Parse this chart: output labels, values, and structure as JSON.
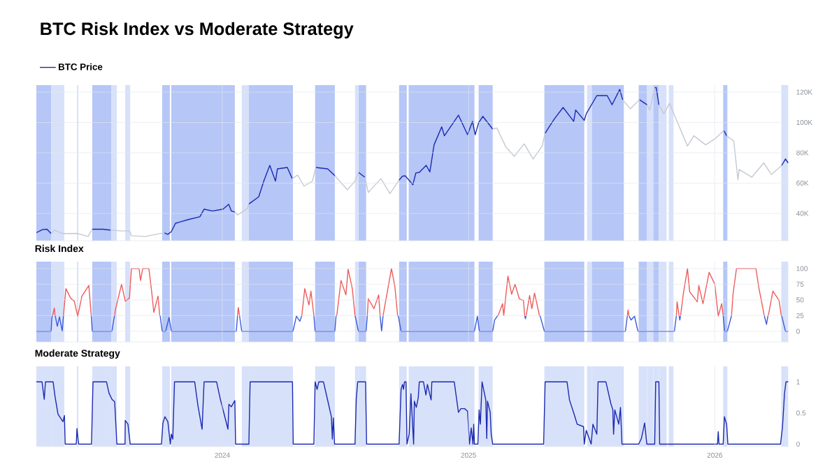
{
  "chart_data": [
    {
      "type": "line",
      "title": "BTC Risk Index vs Moderate Strategy",
      "legend": "top left",
      "grid": true,
      "tick_labels": "y",
      "xlim": [
        2023.245,
        2026.3
      ],
      "xticks": [
        2024,
        2025,
        2026
      ],
      "ylim": [
        22000,
        124600
      ],
      "yticks": [
        {
          "value": 40000,
          "label": "40K"
        },
        {
          "value": 60000,
          "label": "60K"
        },
        {
          "value": 80000,
          "label": "80K"
        },
        {
          "value": 100000,
          "label": "100K"
        },
        {
          "value": 120000,
          "label": "120K"
        }
      ],
      "series": [
        {
          "name": "BTC Price",
          "color": "#1b2ab0",
          "x": [
            2023.245,
            2023.271,
            2023.288,
            2023.305,
            null,
            2023.472,
            2023.515,
            2023.546,
            null,
            2023.765,
            2023.779,
            2023.793,
            2023.81,
            2023.861,
            2023.909,
            2023.926,
            2023.96,
            2024.003,
            2024.026,
            2024.037,
            2024.051,
            null,
            2024.108,
            2024.148,
            2024.17,
            2024.193,
            2024.216,
            2024.224,
            2024.264,
            2024.284,
            null,
            2024.38,
            2024.428,
            2024.457,
            null,
            2024.553,
            2024.579,
            null,
            2024.718,
            2024.732,
            2024.743,
            2024.774,
            2024.786,
            2024.8,
            2024.828,
            2024.843,
            2024.86,
            2024.891,
            2024.902,
            2024.959,
            2024.996,
            2025.016,
            2025.027,
            2025.041,
            2025.058,
            2025.078,
            2025.098,
            null,
            2025.311,
            2025.348,
            2025.384,
            2025.427,
            2025.435,
            2025.47,
            2025.478,
            2025.521,
            2025.563,
            2025.583,
            2025.614,
            2025.626,
            null,
            2025.694,
            2025.725,
            null,
            2025.756,
            2025.762,
            2025.773,
            null,
            2026.037,
            2026.048,
            null,
            2026.272,
            2026.287,
            2026.298
          ],
          "values": [
            27300,
            29400,
            29600,
            26700,
            null,
            29600,
            29600,
            29000,
            null,
            27100,
            26200,
            28000,
            33500,
            35900,
            37800,
            42800,
            41600,
            42800,
            46000,
            41600,
            40900,
            null,
            46200,
            51000,
            62000,
            71700,
            61300,
            69400,
            70300,
            63000,
            null,
            70300,
            69400,
            64900,
            null,
            67100,
            63900,
            null,
            62000,
            64600,
            64800,
            58900,
            66700,
            67100,
            71700,
            67400,
            85200,
            97100,
            91200,
            104800,
            91900,
            100700,
            91900,
            99800,
            104000,
            99800,
            95600,
            null,
            92900,
            102200,
            109900,
            100700,
            108200,
            101400,
            105700,
            117700,
            117700,
            111700,
            121800,
            114900,
            null,
            115000,
            111700,
            null,
            122800,
            123000,
            111700,
            null,
            94700,
            91200,
            null,
            71700,
            75900,
            73300
          ]
        },
        {
          "color": "#c5c9d1",
          "x": [
            2023.305,
            2023.318,
            2023.353,
            2023.413,
            2023.455,
            2023.472,
            null,
            2023.546,
            2023.586,
            2023.623,
            2023.631,
            2023.688,
            2023.748,
            2023.765,
            null,
            2024.051,
            2024.062,
            2024.102,
            2024.108,
            null,
            2024.284,
            2024.306,
            2024.332,
            2024.366,
            2024.38,
            null,
            2024.457,
            2024.508,
            2024.539,
            2024.553,
            null,
            2024.579,
            2024.593,
            2024.644,
            2024.681,
            2024.718,
            null,
            2025.098,
            2025.115,
            2025.152,
            2025.186,
            2025.226,
            2025.262,
            2025.299,
            2025.311,
            null,
            2025.626,
            2025.657,
            2025.694,
            null,
            2025.725,
            2025.736,
            2025.756,
            null,
            2025.773,
            2025.793,
            2025.816,
            2025.847,
            2025.889,
            2025.915,
            2025.963,
            2026.003,
            2026.037,
            null,
            2026.048,
            2026.077,
            2026.094,
            2026.099,
            2026.15,
            2026.199,
            2026.23,
            2026.272
          ],
          "values": [
            26700,
            29000,
            26700,
            26800,
            24800,
            29600,
            null,
            29000,
            28500,
            28500,
            25300,
            24800,
            26800,
            27100,
            null,
            40900,
            39000,
            43200,
            46200,
            null,
            63000,
            65300,
            58000,
            61300,
            70300,
            null,
            64900,
            55600,
            61300,
            67100,
            null,
            63900,
            53800,
            63000,
            53100,
            62000,
            null,
            95600,
            96300,
            83700,
            77700,
            85900,
            75900,
            84400,
            92900,
            null,
            114900,
            109000,
            115000,
            null,
            111700,
            108200,
            122800,
            null,
            111700,
            105700,
            112600,
            100700,
            84400,
            91200,
            85200,
            89500,
            94700,
            null,
            91200,
            87800,
            62200,
            69000,
            63900,
            73300,
            65700,
            71700
          ]
        }
      ],
      "bands": [
        {
          "axis": "x",
          "from": 2023.245,
          "to": 2023.305,
          "color": "#b5c6f7"
        },
        {
          "axis": "x",
          "from": 2023.305,
          "to": 2023.359,
          "color": "#d8e1fa"
        },
        {
          "axis": "x",
          "from": 2023.41,
          "to": 2023.416,
          "color": "#d8e1fa"
        },
        {
          "axis": "x",
          "from": 2023.472,
          "to": 2023.549,
          "color": "#b5c6f7"
        },
        {
          "axis": "x",
          "from": 2023.549,
          "to": 2023.572,
          "color": "#d8e1fa"
        },
        {
          "axis": "x",
          "from": 2023.606,
          "to": 2023.626,
          "color": "#d8e1fa"
        },
        {
          "axis": "x",
          "from": 2023.756,
          "to": 2023.787,
          "color": "#b5c6f7"
        },
        {
          "axis": "x",
          "from": 2023.793,
          "to": 2024.051,
          "color": "#b5c6f7"
        },
        {
          "axis": "x",
          "from": 2024.079,
          "to": 2024.108,
          "color": "#d8e1fa"
        },
        {
          "axis": "x",
          "from": 2024.108,
          "to": 2024.287,
          "color": "#b5c6f7"
        },
        {
          "axis": "x",
          "from": 2024.377,
          "to": 2024.457,
          "color": "#b5c6f7"
        },
        {
          "axis": "x",
          "from": 2024.539,
          "to": 2024.553,
          "color": "#d8e1fa"
        },
        {
          "axis": "x",
          "from": 2024.553,
          "to": 2024.584,
          "color": "#b5c6f7"
        },
        {
          "axis": "x",
          "from": 2024.718,
          "to": 2024.749,
          "color": "#b5c6f7"
        },
        {
          "axis": "x",
          "from": 2024.757,
          "to": 2025.024,
          "color": "#b5c6f7"
        },
        {
          "axis": "x",
          "from": 2025.041,
          "to": 2025.098,
          "color": "#b5c6f7"
        },
        {
          "axis": "x",
          "from": 2025.308,
          "to": 2025.47,
          "color": "#b5c6f7"
        },
        {
          "axis": "x",
          "from": 2025.481,
          "to": 2025.501,
          "color": "#d8e1fa"
        },
        {
          "axis": "x",
          "from": 2025.501,
          "to": 2025.631,
          "color": "#b5c6f7"
        },
        {
          "axis": "x",
          "from": 2025.691,
          "to": 2025.725,
          "color": "#b5c6f7"
        },
        {
          "axis": "x",
          "from": 2025.725,
          "to": 2025.75,
          "color": "#d8e1fa"
        },
        {
          "axis": "x",
          "from": 2025.75,
          "to": 2025.773,
          "color": "#b5c6f7"
        },
        {
          "axis": "x",
          "from": 2025.773,
          "to": 2025.804,
          "color": "#d8e1fa"
        },
        {
          "axis": "x",
          "from": 2025.813,
          "to": 2025.833,
          "color": "#d8e1fa"
        },
        {
          "axis": "x",
          "from": 2026.034,
          "to": 2026.051,
          "color": "#b5c6f7"
        },
        {
          "axis": "x",
          "from": 2026.27,
          "to": 2026.298,
          "color": "#d8e1fa"
        }
      ]
    },
    {
      "type": "line",
      "title": "Risk Index",
      "grid": true,
      "tick_labels": "y",
      "xlim": [
        2023.245,
        2026.3
      ],
      "xticks": [
        2024,
        2025,
        2026
      ],
      "ylim": [
        -17,
        111
      ],
      "yticks": [
        0,
        25,
        50,
        75,
        100
      ],
      "series": [
        {
          "color": "#3b5bdb",
          "x": [
            2023.245,
            2023.305,
            2023.308,
            2023.311,
            null,
            2023.321,
            2023.322,
            2023.33,
            2023.339,
            2023.35,
            2023.355,
            null,
            2023.468,
            2023.472,
            2023.552,
            2023.56,
            2023.563,
            null,
            2023.746,
            2023.748,
            2023.756,
            2023.77,
            2023.784,
            2023.793,
            2024.057,
            2024.062,
            null,
            2024.07,
            2024.079,
            2024.287,
            2024.301,
            2024.315,
            2024.323,
            null,
            2024.372,
            2024.377,
            2024.457,
            2024.462,
            2024.465,
            null,
            2024.539,
            2024.542,
            2024.553,
            2024.584,
            2024.589,
            null,
            2024.641,
            2024.647,
            2024.653,
            null,
            2024.712,
            2024.715,
            2024.726,
            2025.024,
            2025.036,
            2025.044,
            2025.098,
            2025.106,
            2025.118,
            null,
            2025.228,
            2025.231,
            2025.234,
            null,
            2025.288,
            2025.291,
            2025.308,
            2025.637,
            2025.645,
            null,
            2025.651,
            2025.66,
            2025.674,
            2025.688,
            2025.836,
            2025.844,
            null,
            2025.855,
            2025.858,
            2025.861,
            null,
            2026.034,
            2026.04,
            2026.051,
            2026.068,
            null,
            2026.201,
            2026.21,
            2026.216,
            null,
            2026.27,
            2026.272,
            2026.287,
            2026.298
          ],
          "values": [
            0,
            0,
            22,
            25,
            null,
            25,
            24,
            8,
            23,
            0,
            25,
            null,
            25,
            0,
            0,
            20,
            25,
            null,
            25,
            24,
            0,
            0,
            22,
            0,
            0,
            25,
            null,
            25,
            0,
            0,
            24,
            16,
            25,
            null,
            25,
            0,
            0,
            24,
            25,
            null,
            25,
            20,
            0,
            0,
            25,
            null,
            25,
            0,
            25,
            null,
            25,
            24,
            0,
            0,
            24,
            0,
            0,
            18,
            25,
            null,
            25,
            20,
            25,
            null,
            25,
            24,
            0,
            0,
            25,
            null,
            25,
            18,
            24,
            0,
            0,
            25,
            null,
            25,
            18,
            25,
            null,
            25,
            0,
            0,
            25,
            null,
            25,
            11,
            25,
            null,
            25,
            24,
            0,
            0
          ]
        },
        {
          "color": "#ef5b5b",
          "x": [
            2023.311,
            2023.318,
            2023.321,
            null,
            2023.355,
            2023.365,
            2023.384,
            2023.399,
            2023.413,
            2023.43,
            2023.458,
            2023.468,
            null,
            2023.563,
            2023.566,
            2023.591,
            2023.606,
            2023.623,
            2023.631,
            2023.662,
            2023.668,
            2023.677,
            2023.702,
            2023.713,
            2023.722,
            2023.739,
            2023.746,
            null,
            2024.062,
            2024.065,
            2024.07,
            null,
            2024.323,
            2024.335,
            2024.352,
            2024.36,
            2024.372,
            null,
            2024.465,
            2024.482,
            2024.502,
            2024.511,
            2024.528,
            2024.539,
            null,
            2024.589,
            2024.593,
            2024.616,
            2024.635,
            2024.641,
            null,
            2024.653,
            2024.658,
            2024.687,
            2024.701,
            2024.712,
            null,
            2025.118,
            2025.121,
            2025.138,
            2025.143,
            2025.16,
            2025.175,
            2025.189,
            2025.206,
            2025.223,
            2025.228,
            null,
            2025.234,
            2025.248,
            2025.257,
            2025.268,
            2025.288,
            null,
            2025.645,
            2025.648,
            2025.651,
            null,
            2025.844,
            2025.847,
            2025.855,
            null,
            2025.861,
            2025.872,
            2025.889,
            2025.898,
            2025.929,
            2025.935,
            2025.952,
            2025.977,
            2026.0,
            2026.014,
            2026.028,
            2026.034,
            null,
            2026.068,
            2026.074,
            2026.088,
            2026.167,
            2026.179,
            2026.201,
            null,
            2026.216,
            2026.219,
            2026.236,
            2026.261,
            2026.27
          ],
          "values": [
            25,
            37,
            25,
            null,
            25,
            68,
            53,
            48,
            24,
            56,
            73,
            25,
            null,
            25,
            34,
            75,
            48,
            53,
            100,
            100,
            81,
            100,
            100,
            64,
            30,
            56,
            25,
            null,
            25,
            38,
            25,
            null,
            25,
            68,
            42,
            64,
            25,
            null,
            25,
            81,
            58,
            99,
            68,
            25,
            null,
            25,
            52,
            36,
            58,
            25,
            null,
            25,
            36,
            100,
            71,
            25,
            null,
            25,
            26,
            44,
            25,
            88,
            59,
            75,
            52,
            49,
            25,
            null,
            25,
            57,
            36,
            61,
            25,
            null,
            25,
            34,
            25,
            null,
            25,
            47,
            25,
            null,
            25,
            59,
            100,
            63,
            47,
            73,
            44,
            94,
            75,
            24,
            44,
            25,
            null,
            25,
            59,
            100,
            100,
            69,
            25,
            null,
            25,
            28,
            64,
            49,
            25
          ]
        }
      ],
      "bands": [
        {
          "axis": "x",
          "from": 2023.245,
          "to": 2023.305,
          "color": "#b5c6f7"
        },
        {
          "axis": "x",
          "from": 2023.305,
          "to": 2023.359,
          "color": "#d8e1fa"
        },
        {
          "axis": "x",
          "from": 2023.41,
          "to": 2023.416,
          "color": "#d8e1fa"
        },
        {
          "axis": "x",
          "from": 2023.472,
          "to": 2023.549,
          "color": "#b5c6f7"
        },
        {
          "axis": "x",
          "from": 2023.549,
          "to": 2023.572,
          "color": "#d8e1fa"
        },
        {
          "axis": "x",
          "from": 2023.606,
          "to": 2023.626,
          "color": "#d8e1fa"
        },
        {
          "axis": "x",
          "from": 2023.756,
          "to": 2023.787,
          "color": "#b5c6f7"
        },
        {
          "axis": "x",
          "from": 2023.793,
          "to": 2024.051,
          "color": "#b5c6f7"
        },
        {
          "axis": "x",
          "from": 2024.079,
          "to": 2024.108,
          "color": "#d8e1fa"
        },
        {
          "axis": "x",
          "from": 2024.108,
          "to": 2024.287,
          "color": "#b5c6f7"
        },
        {
          "axis": "x",
          "from": 2024.377,
          "to": 2024.457,
          "color": "#b5c6f7"
        },
        {
          "axis": "x",
          "from": 2024.539,
          "to": 2024.553,
          "color": "#d8e1fa"
        },
        {
          "axis": "x",
          "from": 2024.553,
          "to": 2024.584,
          "color": "#b5c6f7"
        },
        {
          "axis": "x",
          "from": 2024.718,
          "to": 2024.749,
          "color": "#b5c6f7"
        },
        {
          "axis": "x",
          "from": 2024.757,
          "to": 2025.024,
          "color": "#b5c6f7"
        },
        {
          "axis": "x",
          "from": 2025.041,
          "to": 2025.098,
          "color": "#b5c6f7"
        },
        {
          "axis": "x",
          "from": 2025.308,
          "to": 2025.47,
          "color": "#b5c6f7"
        },
        {
          "axis": "x",
          "from": 2025.481,
          "to": 2025.501,
          "color": "#d8e1fa"
        },
        {
          "axis": "x",
          "from": 2025.501,
          "to": 2025.631,
          "color": "#b5c6f7"
        },
        {
          "axis": "x",
          "from": 2025.691,
          "to": 2025.725,
          "color": "#b5c6f7"
        },
        {
          "axis": "x",
          "from": 2025.725,
          "to": 2025.75,
          "color": "#d8e1fa"
        },
        {
          "axis": "x",
          "from": 2025.75,
          "to": 2025.773,
          "color": "#b5c6f7"
        },
        {
          "axis": "x",
          "from": 2025.773,
          "to": 2025.804,
          "color": "#d8e1fa"
        },
        {
          "axis": "x",
          "from": 2025.813,
          "to": 2025.833,
          "color": "#d8e1fa"
        },
        {
          "axis": "x",
          "from": 2026.034,
          "to": 2026.051,
          "color": "#b5c6f7"
        },
        {
          "axis": "x",
          "from": 2026.27,
          "to": 2026.298,
          "color": "#d8e1fa"
        }
      ]
    },
    {
      "type": "line",
      "title": "Moderate Strategy",
      "grid": "x",
      "xlim": [
        2023.245,
        2026.3
      ],
      "xticks": [
        2024,
        2025,
        2026
      ],
      "ylim": [
        -0.04,
        1.25
      ],
      "yticks": [
        0,
        0.5,
        1
      ],
      "series": [
        {
          "color": "#1b2ab0",
          "x": [
            2023.245,
            2023.268,
            2023.277,
            2023.282,
            2023.313,
            2023.321,
            2023.333,
            2023.353,
            2023.359,
            2023.362,
            2023.407,
            2023.41,
            2023.413,
            2023.417,
            2023.469,
            2023.475,
            2023.53,
            2023.54,
            2023.552,
            2023.563,
            2023.572,
            2023.605,
            2023.606,
            2023.617,
            2023.626,
            2023.753,
            2023.759,
            2023.767,
            2023.779,
            2023.789,
            2023.793,
            2023.799,
            2023.806,
            2023.888,
            2023.901,
            2023.918,
            2023.926,
            2023.977,
            2023.991,
            2024.023,
            2024.027,
            2024.037,
            2024.051,
            2024.054,
            2024.108,
            2024.113,
            2024.285,
            2024.288,
            2024.372,
            2024.377,
            2024.385,
            2024.392,
            2024.411,
            2024.427,
            2024.443,
            2024.447,
            2024.451,
            2024.456,
            2024.539,
            2024.544,
            2024.55,
            2024.582,
            2024.586,
            2024.718,
            2024.726,
            2024.732,
            2024.736,
            2024.74,
            2024.746,
            2024.75,
            2024.759,
            2024.766,
            2024.777,
            2024.78,
            2024.788,
            2024.796,
            2024.8,
            2024.817,
            2024.827,
            2024.833,
            2024.848,
            2024.851,
            2024.942,
            2024.959,
            2024.969,
            2024.984,
            2024.996,
            2025.004,
            2025.011,
            2025.018,
            2025.021,
            2025.024,
            2025.038,
            2025.043,
            2025.048,
            2025.055,
            2025.07,
            2025.074,
            2025.077,
            2025.088,
            2025.092,
            2025.098,
            2025.305,
            2025.311,
            2025.4,
            2025.41,
            2025.432,
            2025.441,
            2025.467,
            2025.47,
            2025.478,
            2025.498,
            2025.505,
            2025.521,
            2025.526,
            2025.558,
            2025.578,
            2025.586,
            2025.589,
            2025.594,
            2025.61,
            2025.617,
            2025.623,
            2025.691,
            2025.702,
            2025.715,
            2025.724,
            2025.756,
            2025.76,
            2025.773,
            2025.776,
            2026.011,
            2026.014,
            2026.017,
            2026.034,
            2026.039,
            2026.048,
            2026.053,
            2026.267,
            2026.275,
            2026.283,
            2026.289,
            2026.298
          ],
          "values": [
            1,
            1,
            0.72,
            1,
            1,
            0.76,
            0.48,
            0.36,
            0.46,
            0,
            0,
            0.25,
            0.12,
            0,
            0,
            1,
            1,
            0.82,
            0.72,
            0.68,
            0,
            0,
            0.38,
            0.32,
            0,
            0,
            0.34,
            0.44,
            0.36,
            0,
            0.16,
            0.08,
            1,
            1,
            0.62,
            0.24,
            1,
            1,
            0.74,
            0.24,
            0.64,
            0.6,
            0.7,
            0,
            0,
            1,
            1,
            0,
            0,
            1,
            0.88,
            1,
            1,
            0.72,
            0.44,
            0.08,
            0.42,
            0,
            0,
            0.72,
            1,
            1,
            0,
            0,
            0.88,
            0.96,
            0.88,
            1,
            1,
            0,
            0.16,
            0.81,
            0,
            0.69,
            0.59,
            0.75,
            1,
            1,
            0.79,
            0.96,
            0.71,
            1,
            1,
            0.51,
            0.57,
            0.57,
            0.53,
            0,
            0.26,
            0,
            0.32,
            0,
            0,
            0.55,
            0.32,
            1,
            0.71,
            0.09,
            0.69,
            0.51,
            0.16,
            0,
            0,
            1,
            1,
            0.71,
            0.44,
            0.32,
            0.28,
            0,
            0.22,
            0,
            0.32,
            0.16,
            1,
            1,
            0.65,
            0.55,
            0.16,
            0.55,
            0.32,
            0.59,
            0,
            0,
            0.09,
            0.34,
            0,
            0,
            1,
            1,
            0,
            0,
            0.2,
            0,
            0,
            0.44,
            0.32,
            0,
            0,
            0.28,
            0.81,
            1,
            1
          ]
        }
      ],
      "bands": [
        {
          "axis": "x",
          "from": 2023.245,
          "to": 2023.305,
          "color": "#d8e1fa"
        },
        {
          "axis": "x",
          "from": 2023.305,
          "to": 2023.359,
          "color": "#d8e1fa"
        },
        {
          "axis": "x",
          "from": 2023.41,
          "to": 2023.416,
          "color": "#d8e1fa"
        },
        {
          "axis": "x",
          "from": 2023.472,
          "to": 2023.549,
          "color": "#d8e1fa"
        },
        {
          "axis": "x",
          "from": 2023.549,
          "to": 2023.572,
          "color": "#d8e1fa"
        },
        {
          "axis": "x",
          "from": 2023.606,
          "to": 2023.626,
          "color": "#d8e1fa"
        },
        {
          "axis": "x",
          "from": 2023.756,
          "to": 2023.787,
          "color": "#d8e1fa"
        },
        {
          "axis": "x",
          "from": 2023.793,
          "to": 2024.051,
          "color": "#d8e1fa"
        },
        {
          "axis": "x",
          "from": 2024.079,
          "to": 2024.108,
          "color": "#d8e1fa"
        },
        {
          "axis": "x",
          "from": 2024.108,
          "to": 2024.287,
          "color": "#d8e1fa"
        },
        {
          "axis": "x",
          "from": 2024.377,
          "to": 2024.457,
          "color": "#d8e1fa"
        },
        {
          "axis": "x",
          "from": 2024.539,
          "to": 2024.553,
          "color": "#d8e1fa"
        },
        {
          "axis": "x",
          "from": 2024.553,
          "to": 2024.584,
          "color": "#d8e1fa"
        },
        {
          "axis": "x",
          "from": 2024.718,
          "to": 2024.749,
          "color": "#d8e1fa"
        },
        {
          "axis": "x",
          "from": 2024.757,
          "to": 2025.024,
          "color": "#d8e1fa"
        },
        {
          "axis": "x",
          "from": 2025.041,
          "to": 2025.098,
          "color": "#d8e1fa"
        },
        {
          "axis": "x",
          "from": 2025.308,
          "to": 2025.47,
          "color": "#d8e1fa"
        },
        {
          "axis": "x",
          "from": 2025.481,
          "to": 2025.501,
          "color": "#d8e1fa"
        },
        {
          "axis": "x",
          "from": 2025.501,
          "to": 2025.631,
          "color": "#d8e1fa"
        },
        {
          "axis": "x",
          "from": 2025.691,
          "to": 2025.725,
          "color": "#d8e1fa"
        },
        {
          "axis": "x",
          "from": 2025.725,
          "to": 2025.75,
          "color": "#d8e1fa"
        },
        {
          "axis": "x",
          "from": 2025.75,
          "to": 2025.773,
          "color": "#d8e1fa"
        },
        {
          "axis": "x",
          "from": 2025.773,
          "to": 2025.804,
          "color": "#d8e1fa"
        },
        {
          "axis": "x",
          "from": 2025.813,
          "to": 2025.833,
          "color": "#d8e1fa"
        },
        {
          "axis": "x",
          "from": 2026.034,
          "to": 2026.051,
          "color": "#d8e1fa"
        },
        {
          "axis": "x",
          "from": 2026.27,
          "to": 2026.298,
          "color": "#d8e1fa"
        }
      ]
    }
  ]
}
